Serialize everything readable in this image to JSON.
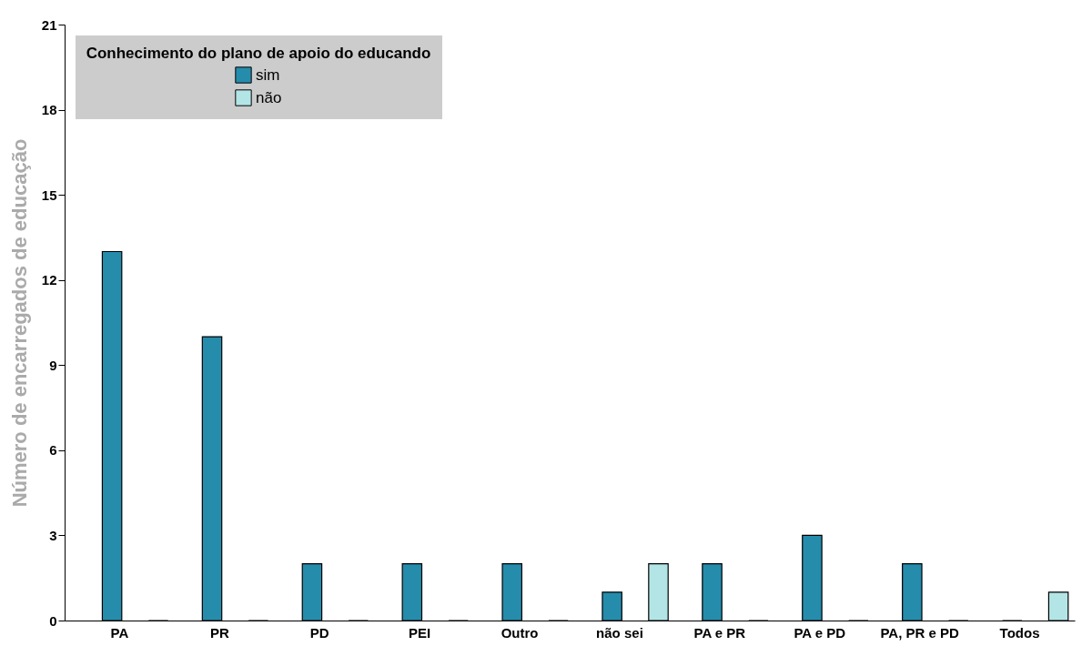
{
  "chart_data": {
    "type": "bar",
    "ylabel": "Número de encarregados de educação",
    "legend_title": "Conhecimento do plano de apoio do educando",
    "legend": "top left",
    "grid": false,
    "categories": [
      "PA",
      "PR",
      "PD",
      "PEI",
      "Outro",
      "não sei",
      "PA e PR",
      "PA e PD",
      "PA, PR e PD",
      "Todos"
    ],
    "series": [
      {
        "name": "sim",
        "color": "#268cac",
        "values": [
          13,
          10,
          2,
          2,
          2,
          1,
          2,
          3,
          2,
          0
        ]
      },
      {
        "name": "não",
        "color": "#b3e5e6",
        "values": [
          0,
          0,
          0,
          0,
          0,
          2,
          0,
          0,
          0,
          1
        ]
      }
    ],
    "ylim": [
      0,
      21
    ],
    "yticks": [
      0,
      3,
      6,
      9,
      12,
      15,
      18,
      21
    ]
  }
}
